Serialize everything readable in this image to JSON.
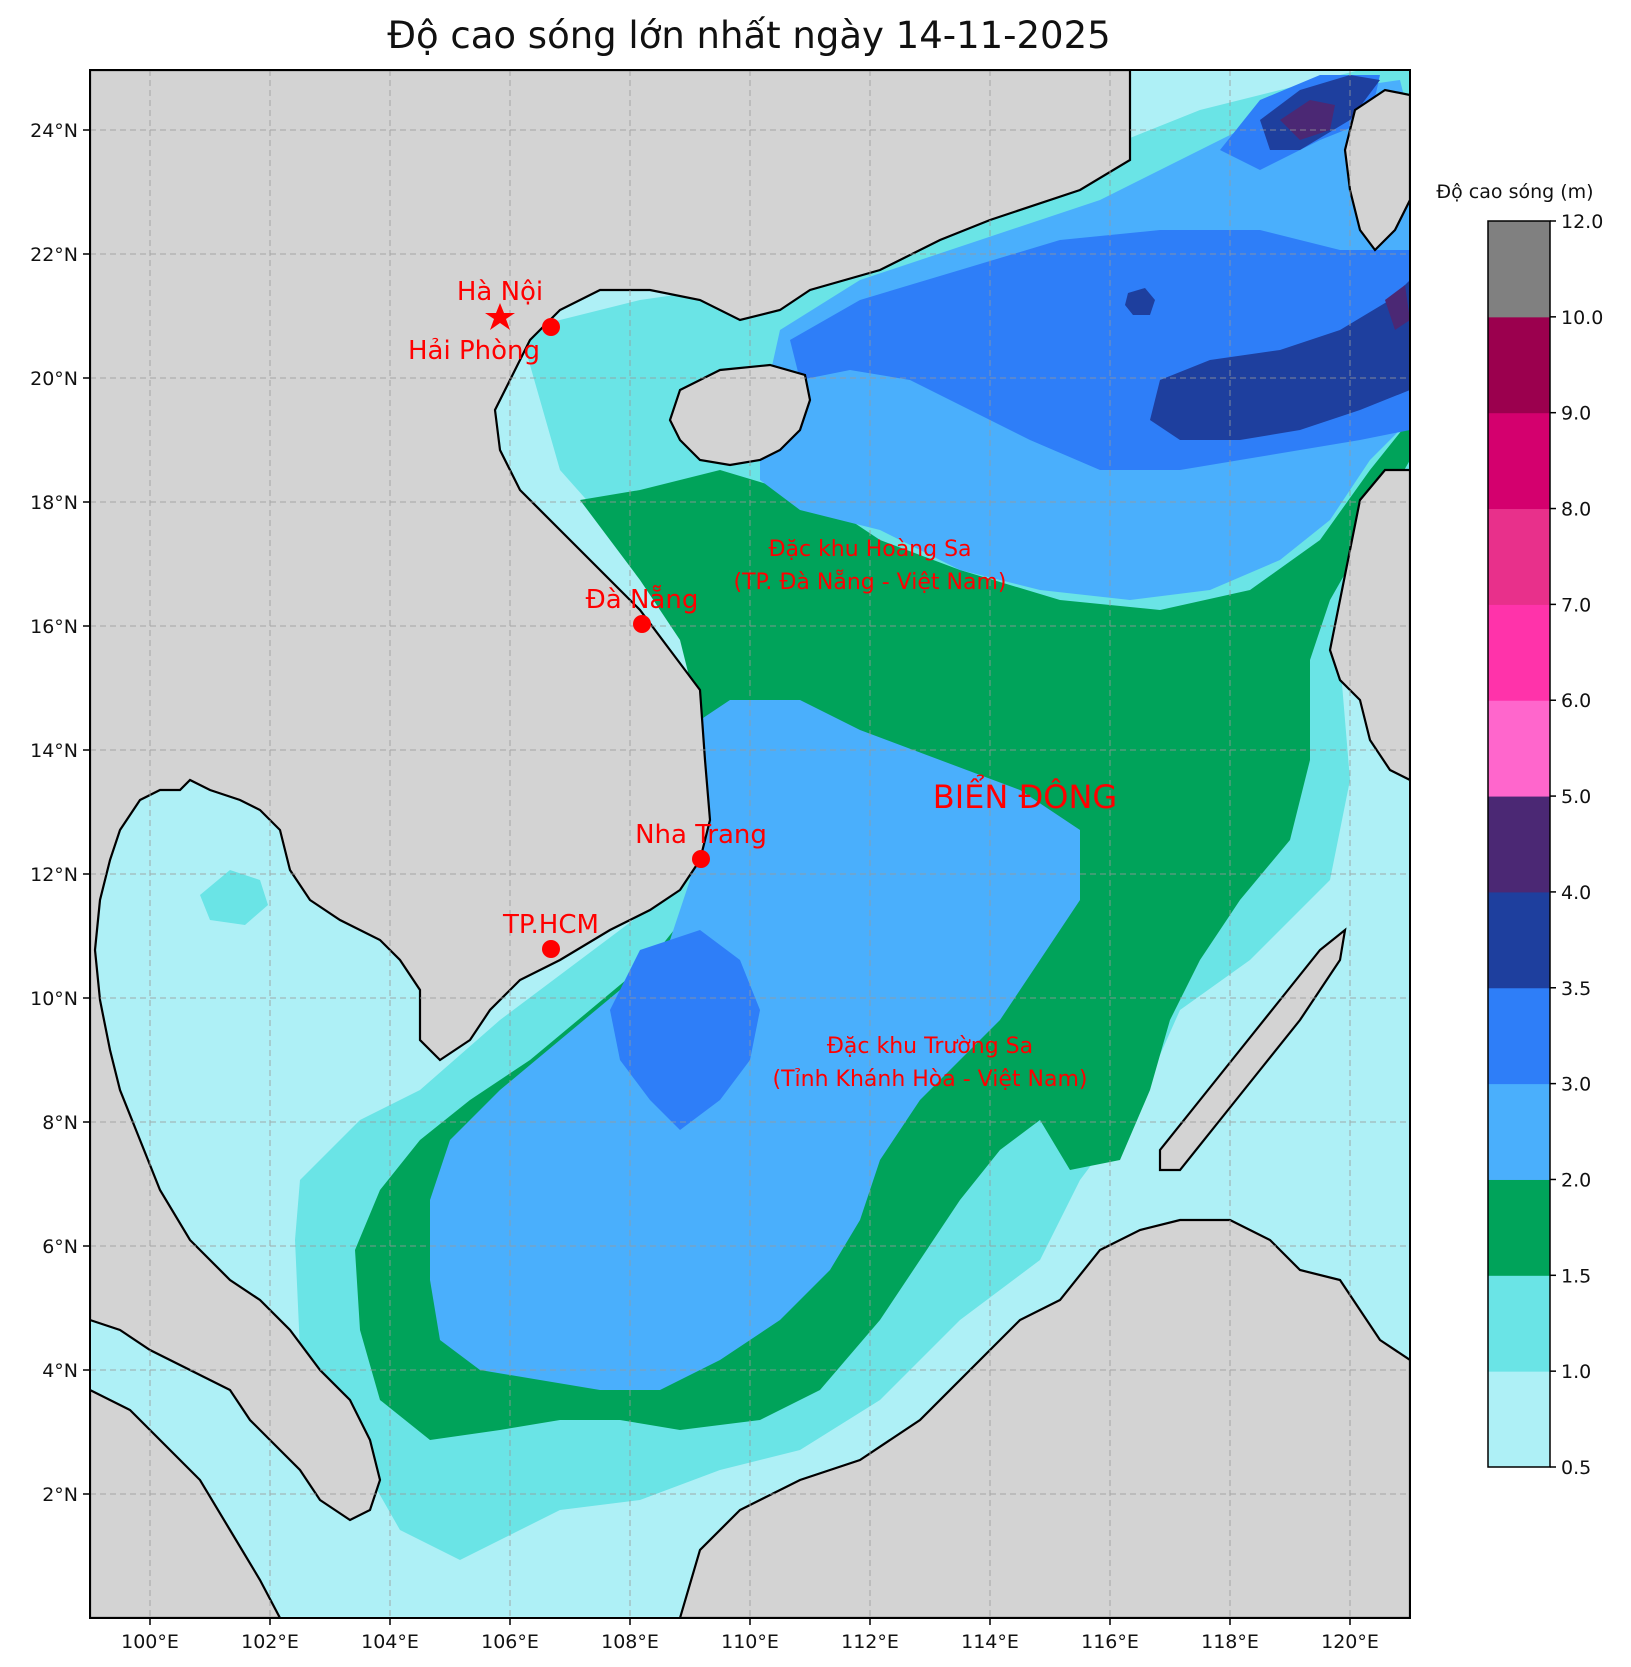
{
  "title": "Độ cao sóng lớn nhất ngày 14-11-2025",
  "colorbar": {
    "title": "Độ cao sóng (m)",
    "levels": [
      0.5,
      1.0,
      1.5,
      2.0,
      3.0,
      3.5,
      4.0,
      5.0,
      6.0,
      7.0,
      8.0,
      9.0,
      10.0,
      12.0
    ],
    "tick_labels": [
      "0.5",
      "1.0",
      "1.5",
      "2.0",
      "3.0",
      "3.5",
      "4.0",
      "5.0",
      "6.0",
      "7.0",
      "8.0",
      "9.0",
      "10.0",
      "12.0"
    ],
    "colors": [
      "#aef0f6",
      "#6ae4e6",
      "#00a35a",
      "#4aaffc",
      "#2e7ef8",
      "#1e3f9e",
      "#4b2874",
      "#ff66cc",
      "#ff33aa",
      "#e8308b",
      "#d4006e",
      "#9b004e",
      "#808080"
    ]
  },
  "axes": {
    "lon_range": [
      99.0,
      121.0
    ],
    "lat_range": [
      0.0,
      25.0
    ],
    "lon_ticks": [
      "100°E",
      "102°E",
      "104°E",
      "106°E",
      "108°E",
      "110°E",
      "112°E",
      "114°E",
      "116°E",
      "118°E",
      "120°E"
    ],
    "lat_ticks": [
      "2°N",
      "4°N",
      "6°N",
      "8°N",
      "10°N",
      "12°N",
      "14°N",
      "16°N",
      "18°N",
      "20°N",
      "22°N",
      "24°N"
    ]
  },
  "cities": [
    {
      "name": "Hà Nội",
      "marker": "star"
    },
    {
      "name": "Hải Phòng",
      "marker": "circle"
    },
    {
      "name": "Đà Nẵng",
      "marker": "circle"
    },
    {
      "name": "Nha Trang",
      "marker": "circle"
    },
    {
      "name": "TP.HCM",
      "marker": "circle"
    }
  ],
  "regions": {
    "hoang_sa": [
      "Đặc khu Hoàng Sa",
      "(TP. Đà Nẵng - Việt Nam)"
    ],
    "truong_sa": [
      "Đặc khu Trường Sa",
      "(Tỉnh Khánh Hòa - Việt Nam)"
    ],
    "sea": "BIỂN ĐÔNG"
  },
  "colors": {
    "land": "#d3d3d3",
    "marker": "#ff0000",
    "grid": "#999999"
  }
}
